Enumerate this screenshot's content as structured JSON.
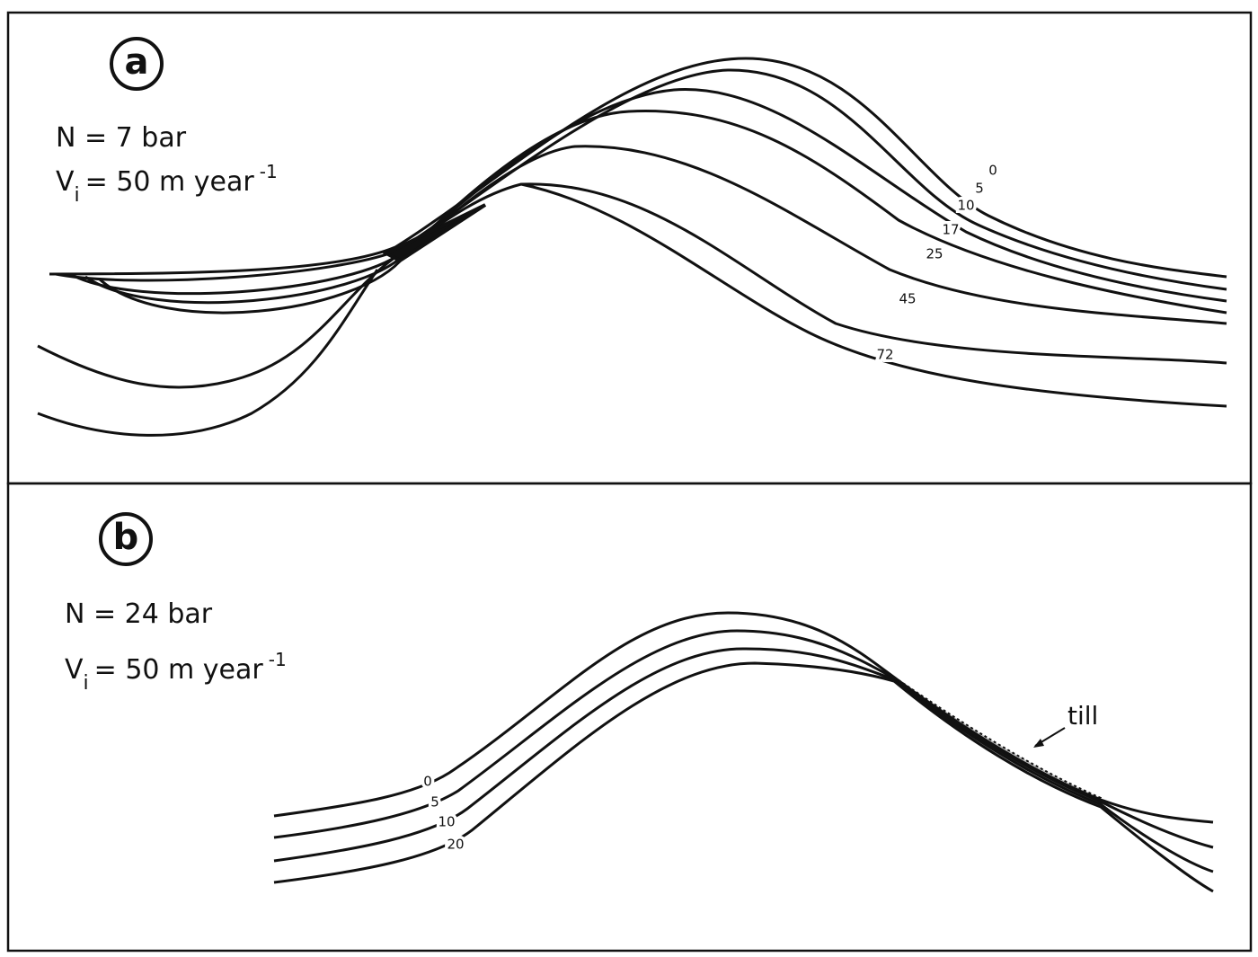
{
  "panels": [
    {
      "label": "a",
      "n_text": "N = 7 bar",
      "v_symbol": "V",
      "v_subscript": "i",
      "v_text": "= 50 m year",
      "v_superscript": "-1",
      "contour_labels": [
        "0",
        "5",
        "10",
        "17",
        "25",
        "45",
        "72"
      ]
    },
    {
      "label": "b",
      "n_text": "N = 24  bar",
      "v_symbol": "V",
      "v_subscript": "i",
      "v_text": "= 50 m year",
      "v_superscript": "-1",
      "contour_labels": [
        "0",
        "5",
        "10",
        "20"
      ],
      "annotation": "till"
    }
  ]
}
